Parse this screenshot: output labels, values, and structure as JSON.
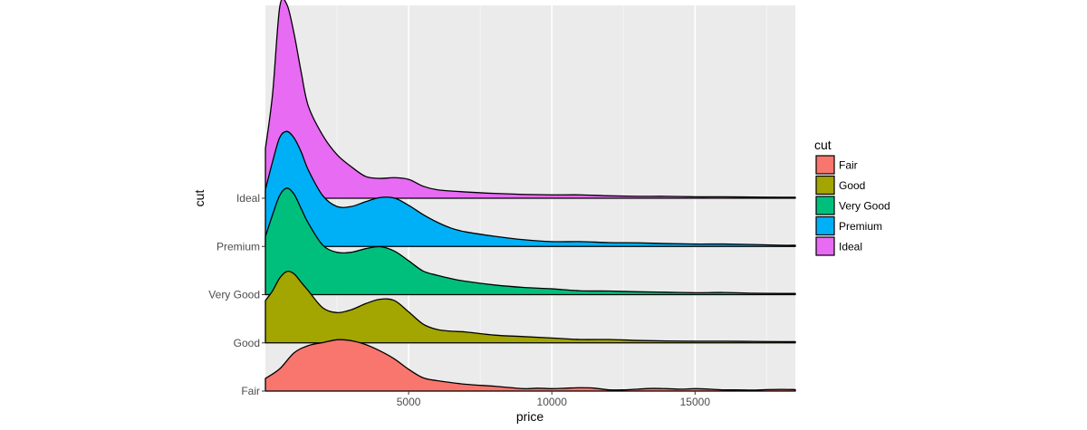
{
  "chart_data": {
    "type": "area",
    "subtype": "ridgeline",
    "title": "",
    "xlabel": "price",
    "ylabel": "cut",
    "xlim": [
      0,
      18500
    ],
    "x_ticks": [
      5000,
      10000,
      15000
    ],
    "x_tick_labels": [
      "5000",
      "10000",
      "15000"
    ],
    "categories": [
      "Fair",
      "Good",
      "Very Good",
      "Premium",
      "Ideal"
    ],
    "grid": true,
    "legend": {
      "title": "cut",
      "position": "right"
    },
    "series": [
      {
        "name": "Fair",
        "color": "#F8766D",
        "x": [
          0,
          500,
          1000,
          1500,
          2000,
          2500,
          3000,
          3500,
          4000,
          4500,
          5000,
          5500,
          6000,
          7000,
          8000,
          9000,
          9500,
          10000,
          10500,
          11000,
          11500,
          12000,
          12500,
          13000,
          13500,
          14000,
          14500,
          15000,
          15500,
          16000,
          16500,
          17000,
          17500,
          18000,
          18500
        ],
        "density": [
          0.52,
          0.92,
          1.58,
          1.88,
          2.0,
          2.12,
          2.08,
          1.92,
          1.66,
          1.33,
          0.9,
          0.55,
          0.43,
          0.28,
          0.2,
          0.1,
          0.12,
          0.1,
          0.12,
          0.14,
          0.12,
          0.05,
          0.05,
          0.08,
          0.11,
          0.1,
          0.08,
          0.1,
          0.08,
          0.05,
          0.05,
          0.04,
          0.06,
          0.07,
          0.06
        ]
      },
      {
        "name": "Good",
        "color": "#A3A500",
        "x": [
          0,
          250,
          500,
          750,
          1000,
          1250,
          1500,
          2000,
          2500,
          3000,
          3500,
          4000,
          4500,
          5000,
          5500,
          6000,
          6500,
          7000,
          8000,
          9000,
          10000,
          11000,
          12000,
          13000,
          14000,
          15000,
          16000,
          17000,
          18000,
          18500
        ],
        "density": [
          1.75,
          2.15,
          2.68,
          2.95,
          2.85,
          2.5,
          2.15,
          1.45,
          1.25,
          1.37,
          1.62,
          1.8,
          1.75,
          1.28,
          0.78,
          0.55,
          0.48,
          0.45,
          0.32,
          0.26,
          0.2,
          0.14,
          0.14,
          0.1,
          0.08,
          0.07,
          0.07,
          0.06,
          0.05,
          0.05
        ]
      },
      {
        "name": "Very Good",
        "color": "#00BF7D",
        "x": [
          0,
          250,
          500,
          750,
          1000,
          1250,
          1500,
          2000,
          2500,
          3000,
          3500,
          4000,
          4500,
          5000,
          5500,
          6000,
          6500,
          7000,
          8000,
          9000,
          10000,
          11000,
          12000,
          13000,
          14000,
          15000,
          16000,
          17000,
          18000,
          18500
        ],
        "density": [
          2.4,
          3.3,
          4.1,
          4.4,
          4.15,
          3.55,
          2.95,
          2.05,
          1.75,
          1.75,
          1.9,
          1.98,
          1.8,
          1.4,
          0.98,
          0.8,
          0.66,
          0.55,
          0.4,
          0.3,
          0.24,
          0.16,
          0.15,
          0.12,
          0.1,
          0.08,
          0.09,
          0.06,
          0.05,
          0.05
        ]
      },
      {
        "name": "Premium",
        "color": "#00B0F6",
        "x": [
          0,
          250,
          500,
          750,
          1000,
          1250,
          1500,
          2000,
          2500,
          3000,
          3500,
          4000,
          4500,
          5000,
          5500,
          6000,
          6500,
          7000,
          8000,
          9000,
          10000,
          11000,
          12000,
          13000,
          14000,
          15000,
          16000,
          17000,
          18000,
          18500
        ],
        "density": [
          2.35,
          3.5,
          4.5,
          4.75,
          4.48,
          3.9,
          3.15,
          2.1,
          1.65,
          1.65,
          1.85,
          2.02,
          2.0,
          1.7,
          1.32,
          1.0,
          0.75,
          0.6,
          0.42,
          0.28,
          0.2,
          0.2,
          0.16,
          0.15,
          0.12,
          0.1,
          0.1,
          0.08,
          0.05,
          0.05
        ]
      },
      {
        "name": "Ideal",
        "color": "#E76BF3",
        "x": [
          0,
          250,
          500,
          750,
          1000,
          1250,
          1500,
          2000,
          2500,
          3000,
          3500,
          4000,
          4500,
          5000,
          5500,
          6000,
          7000,
          8000,
          9000,
          10000,
          11000,
          12000,
          13000,
          14000,
          15000,
          16000,
          17000,
          18000,
          18500
        ],
        "density": [
          2.05,
          4.3,
          7.9,
          8.0,
          6.8,
          5.2,
          3.8,
          2.6,
          1.8,
          1.3,
          0.9,
          0.82,
          0.85,
          0.78,
          0.5,
          0.35,
          0.26,
          0.2,
          0.16,
          0.14,
          0.14,
          0.1,
          0.08,
          0.08,
          0.06,
          0.06,
          0.05,
          0.04,
          0.04
        ]
      }
    ]
  }
}
